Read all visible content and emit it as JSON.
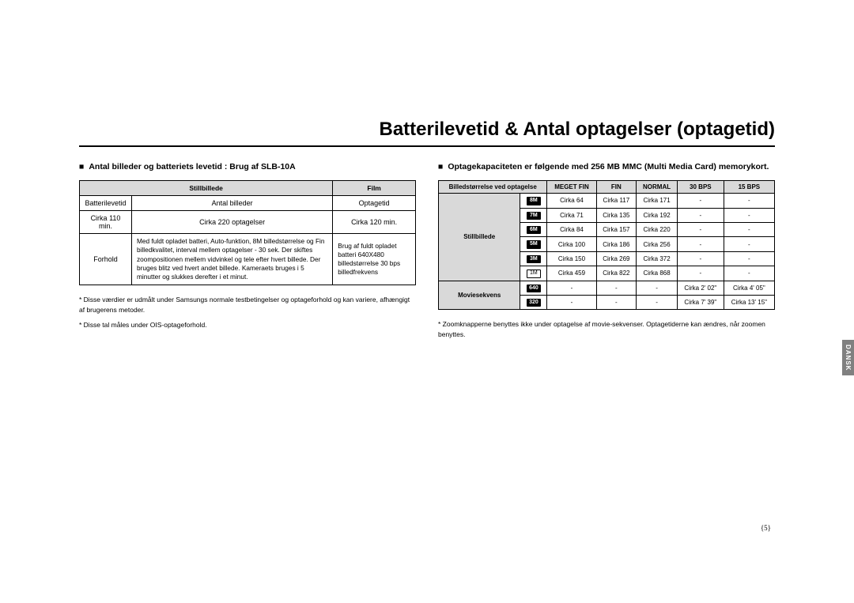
{
  "title": "Batterilevetid & Antal optagelser (optagetid)",
  "sideTab": "DANSK",
  "pageNumber": "{5}",
  "left": {
    "heading": "Antal billeder og batteriets levetid : Brug af SLB-10A",
    "table": {
      "headStillbillede": "Stillbillede",
      "headFilm": "Film",
      "r1c1": "Batterilevetid",
      "r1c2": "Antal billeder",
      "r1c3": "Optagetid",
      "r2c1": "Cirka 110 min.",
      "r2c2": "Cirka 220 optagelser",
      "r2c3": "Cirka 120 min.",
      "r3c1": "Forhold",
      "r3c2": "Med fuldt opladet batteri, Auto-funktion, 8M billedstørrelse og Fin billedkvalitet, interval mellem optagelser - 30 sek. Der skiftes zoompositionen mellem vidvinkel og tele efter hvert billede. Der bruges blitz ved hvert andet billede. Kameraets bruges i 5 minutter og slukkes derefter i et minut.",
      "r3c3": "Brug af fuldt opladet batteri 640X480 billedstørrelse 30 bps billedfrekvens"
    },
    "note1": "* Disse værdier er udmålt under Samsungs normale testbetingelser og optageforhold og kan variere, afhængigt af brugerens metoder.",
    "note2": "* Disse tal måles under OIS-optageforhold."
  },
  "right": {
    "heading": "Optagekapaciteten er følgende med 256 MB MMC (Multi Media Card) memorykort.",
    "headers": {
      "size": "Billedstørrelse ved optagelse",
      "megetFin": "MEGET FIN",
      "fin": "FIN",
      "normal": "NORMAL",
      "bps30": "30 BPS",
      "bps15": "15 BPS"
    },
    "groupStill": "Stillbillede",
    "groupMovie": "Moviesekvens",
    "rows": [
      {
        "badge": "8M",
        "dark": true,
        "v": [
          "Cirka 64",
          "Cirka 117",
          "Cirka 171",
          "-",
          "-"
        ]
      },
      {
        "badge": "7M",
        "dark": true,
        "v": [
          "Cirka 71",
          "Cirka 135",
          "Cirka 192",
          "-",
          "-"
        ]
      },
      {
        "badge": "6M",
        "dark": true,
        "v": [
          "Cirka 84",
          "Cirka 157",
          "Cirka 220",
          "-",
          "-"
        ]
      },
      {
        "badge": "5M",
        "dark": true,
        "v": [
          "Cirka 100",
          "Cirka 186",
          "Cirka 256",
          "-",
          "-"
        ]
      },
      {
        "badge": "3M",
        "dark": true,
        "v": [
          "Cirka 150",
          "Cirka 269",
          "Cirka 372",
          "-",
          "-"
        ]
      },
      {
        "badge": "1M",
        "dark": false,
        "v": [
          "Cirka 459",
          "Cirka 822",
          "Cirka 868",
          "-",
          "-"
        ]
      },
      {
        "badge": "640",
        "dark": true,
        "v": [
          "-",
          "-",
          "-",
          "Cirka 2' 02\"",
          "Cirka 4' 05\""
        ]
      },
      {
        "badge": "320",
        "dark": true,
        "v": [
          "-",
          "-",
          "-",
          "Cirka 7' 39\"",
          "Cirka 13' 15\""
        ]
      }
    ],
    "note": "* Zoomknapperne benyttes ikke under optagelse af movie-sekvenser. Optagetiderne kan ændres, når zoomen benyttes."
  }
}
